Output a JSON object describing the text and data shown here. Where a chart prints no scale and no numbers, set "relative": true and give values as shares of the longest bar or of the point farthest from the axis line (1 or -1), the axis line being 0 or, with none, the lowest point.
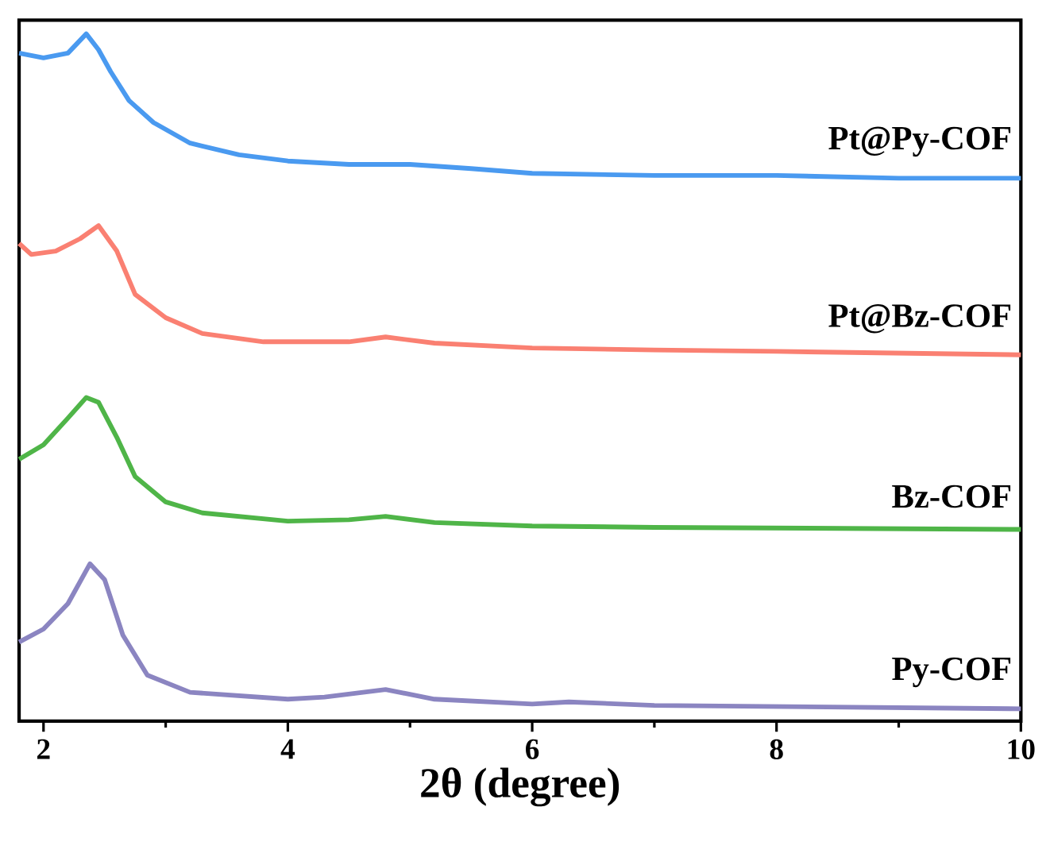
{
  "chart_data": {
    "type": "line",
    "relative": true,
    "xlabel": "2θ (degree)",
    "xlim": [
      1.8,
      10
    ],
    "xticks": [
      2,
      4,
      6,
      8,
      10
    ],
    "tick_labels": "x",
    "grid": false,
    "legend": false,
    "marker": "none",
    "line_style": "solid",
    "series": [
      {
        "name": "Pt@Py-COF",
        "color": "#4a9af0",
        "x": [
          1.8,
          2.0,
          2.2,
          2.35,
          2.45,
          2.55,
          2.7,
          2.9,
          3.2,
          3.6,
          4.0,
          4.5,
          5.0,
          5.5,
          6.0,
          7.0,
          8.0,
          9.0,
          10.0
        ],
        "values": [
          0.972,
          0.965,
          0.972,
          1.0,
          0.977,
          0.945,
          0.903,
          0.871,
          0.841,
          0.824,
          0.815,
          0.81,
          0.81,
          0.804,
          0.797,
          0.794,
          0.794,
          0.79,
          0.79
        ]
      },
      {
        "name": "Pt@Bz-COF",
        "color": "#fa8072",
        "x": [
          1.8,
          1.9,
          2.1,
          2.3,
          2.45,
          2.6,
          2.75,
          3.0,
          3.3,
          3.8,
          4.5,
          4.8,
          5.2,
          6.0,
          7.0,
          8.0,
          10.0
        ],
        "values": [
          0.695,
          0.679,
          0.684,
          0.702,
          0.721,
          0.684,
          0.621,
          0.587,
          0.564,
          0.552,
          0.552,
          0.559,
          0.55,
          0.543,
          0.54,
          0.538,
          0.533
        ]
      },
      {
        "name": "Bz-COF",
        "color": "#4fb548",
        "x": [
          1.8,
          2.0,
          2.2,
          2.35,
          2.45,
          2.6,
          2.75,
          3.0,
          3.3,
          4.0,
          4.5,
          4.8,
          5.2,
          6.0,
          7.0,
          10.0
        ],
        "values": [
          0.381,
          0.402,
          0.441,
          0.471,
          0.464,
          0.413,
          0.356,
          0.319,
          0.303,
          0.291,
          0.293,
          0.298,
          0.289,
          0.284,
          0.282,
          0.279
        ]
      },
      {
        "name": "Py-COF",
        "color": "#8b85c1",
        "x": [
          1.8,
          2.0,
          2.2,
          2.38,
          2.5,
          2.65,
          2.85,
          3.2,
          4.0,
          4.3,
          4.8,
          5.2,
          6.0,
          6.3,
          7.0,
          10.0
        ],
        "values": [
          0.115,
          0.134,
          0.171,
          0.229,
          0.206,
          0.125,
          0.067,
          0.042,
          0.032,
          0.035,
          0.046,
          0.032,
          0.025,
          0.028,
          0.023,
          0.018
        ]
      }
    ]
  }
}
